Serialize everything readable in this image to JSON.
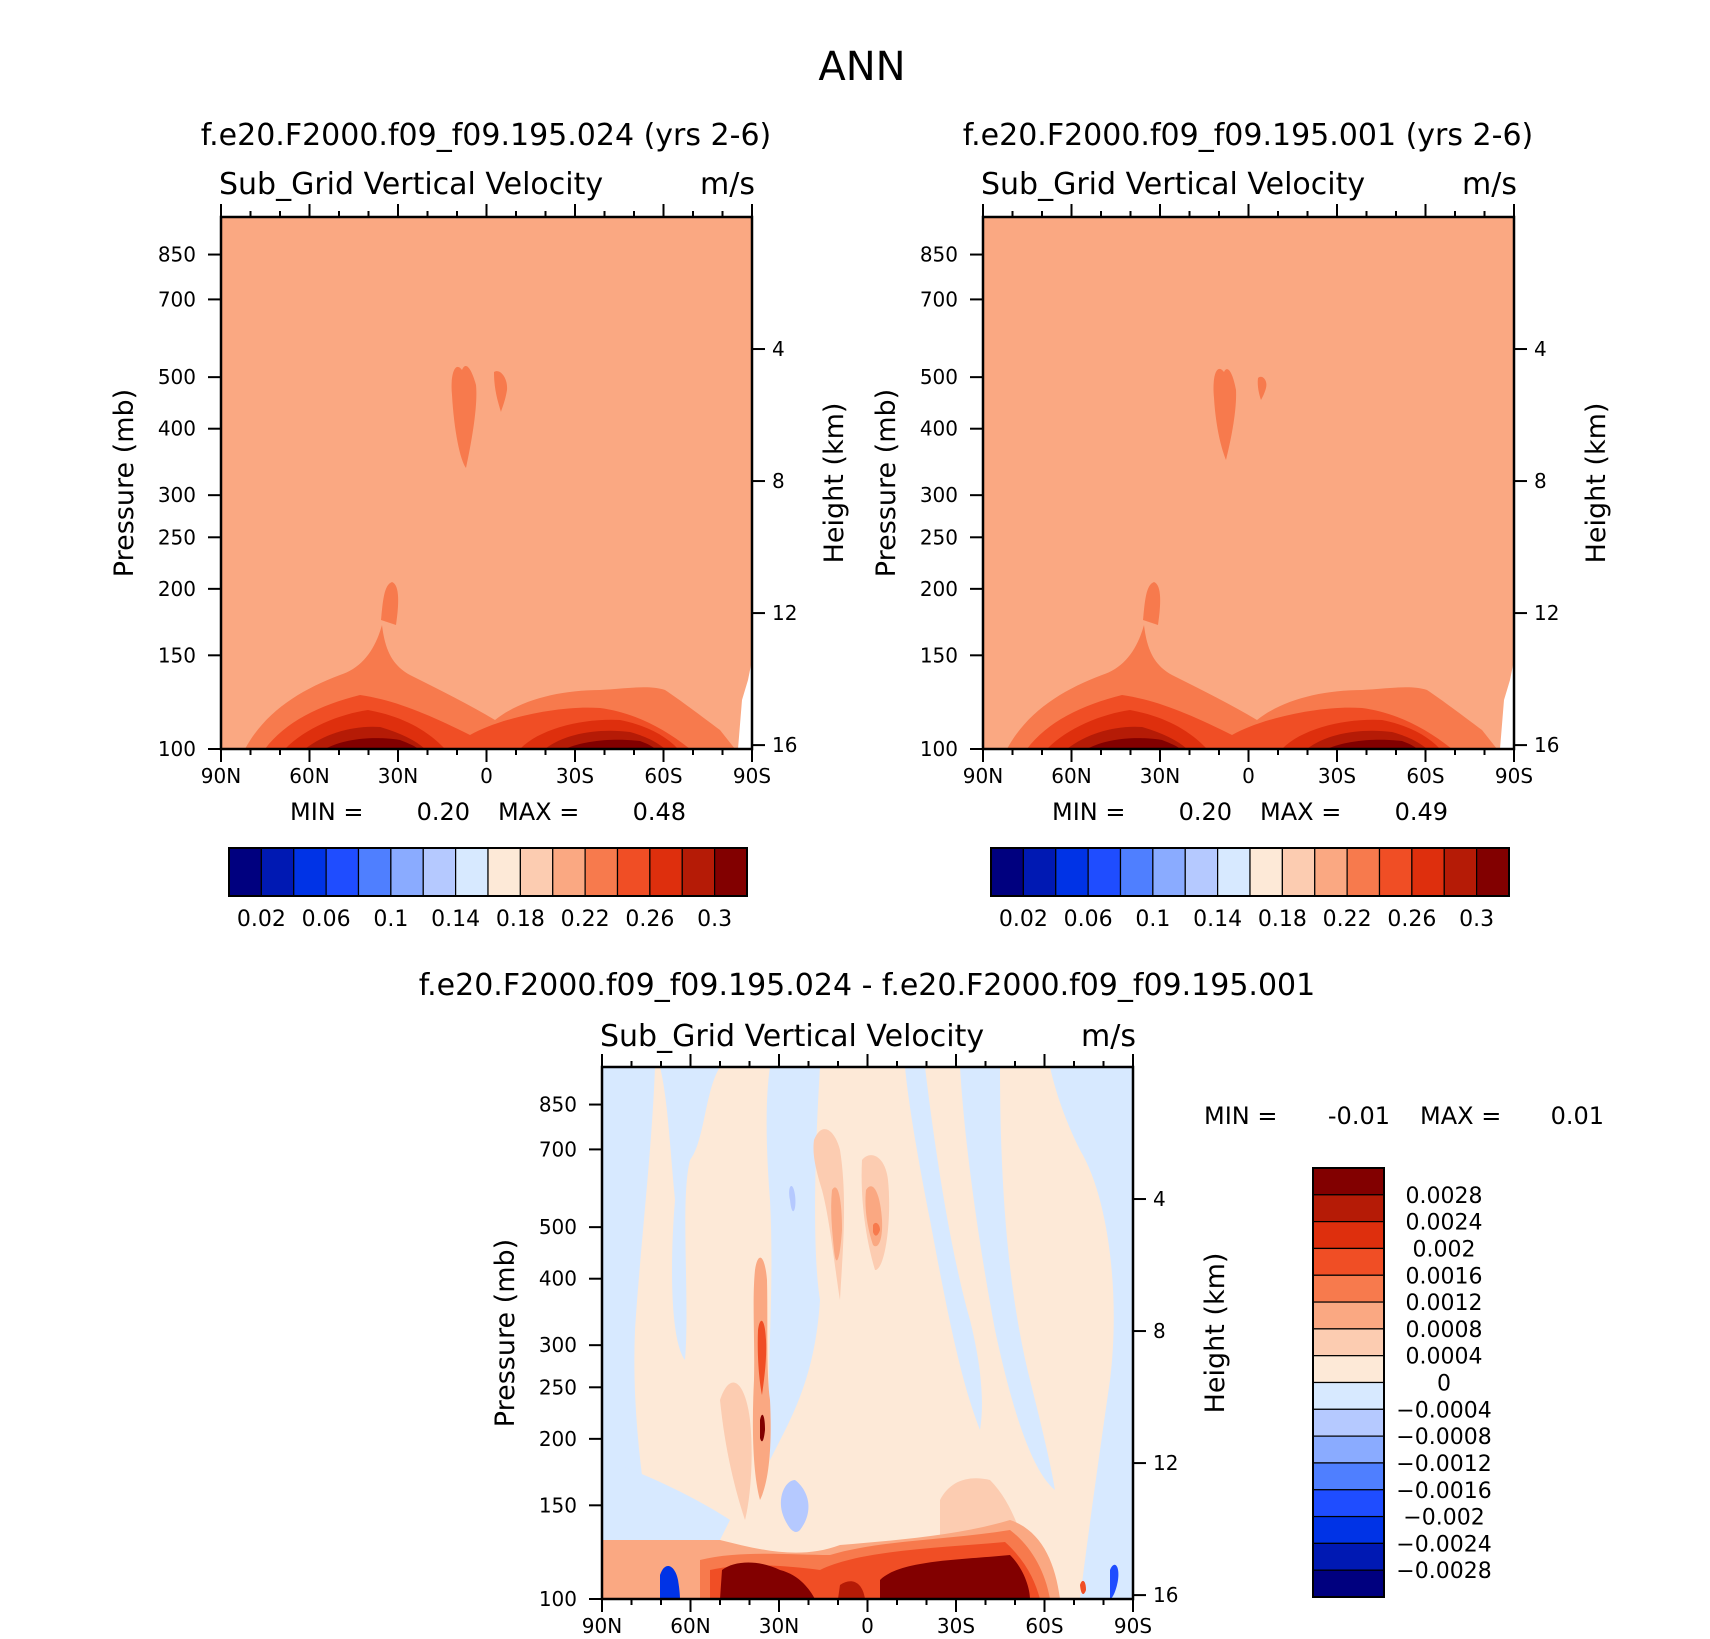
{
  "chart_data": [
    {
      "type": "heatmap",
      "panel": "top-left",
      "case_title": "f.e20.F2000.f09_f09.195.024 (yrs 2-6)",
      "variable": "Sub_Grid Vertical Velocity",
      "units": "m/s",
      "ylabel": "Pressure (mb)",
      "ylabel_right": "Height (km)",
      "x_ticks": [
        "90N",
        "60N",
        "30N",
        "0",
        "30S",
        "60S",
        "90S"
      ],
      "y_ticks": [
        100,
        150,
        200,
        250,
        300,
        400,
        500,
        700,
        850
      ],
      "ylim": [
        1000,
        100
      ],
      "height_ticks": [
        16,
        12,
        8,
        4
      ],
      "min_label": "MIN =",
      "min_value": "0.20",
      "max_label": "MAX =",
      "max_value": "0.48",
      "background_level": "0.18-0.20"
    },
    {
      "type": "heatmap",
      "panel": "top-right",
      "case_title": "f.e20.F2000.f09_f09.195.001 (yrs 2-6)",
      "variable": "Sub_Grid Vertical Velocity",
      "units": "m/s",
      "ylabel": "Pressure (mb)",
      "ylabel_right": "Height (km)",
      "x_ticks": [
        "90N",
        "60N",
        "30N",
        "0",
        "30S",
        "60S",
        "90S"
      ],
      "y_ticks": [
        100,
        150,
        200,
        250,
        300,
        400,
        500,
        700,
        850
      ],
      "ylim": [
        1000,
        100
      ],
      "height_ticks": [
        16,
        12,
        8,
        4
      ],
      "min_label": "MIN =",
      "min_value": "0.20",
      "max_label": "MAX =",
      "max_value": "0.49",
      "background_level": "0.18-0.20"
    },
    {
      "type": "heatmap",
      "panel": "bottom",
      "case_title": "f.e20.F2000.f09_f09.195.024 - f.e20.F2000.f09_f09.195.001",
      "variable": "Sub_Grid Vertical Velocity",
      "units": "m/s",
      "ylabel": "Pressure (mb)",
      "ylabel_right": "Height (km)",
      "x_ticks": [
        "90N",
        "60N",
        "30N",
        "0",
        "30S",
        "60S",
        "90S"
      ],
      "y_ticks": [
        100,
        150,
        200,
        250,
        300,
        400,
        500,
        700,
        850
      ],
      "ylim": [
        1000,
        100
      ],
      "height_ticks": [
        16,
        12,
        8,
        4
      ],
      "min_label": "MIN =",
      "min_value": "-0.01",
      "max_label": "MAX =",
      "max_value": "0.01"
    }
  ],
  "figure": {
    "title": "ANN"
  },
  "colorbar_top": {
    "colors": [
      "#00007f",
      "#0019b3",
      "#0033e6",
      "#1f4dff",
      "#4f7fff",
      "#8aabff",
      "#b5c9ff",
      "#d7e9ff",
      "#fde9d7",
      "#fcccb1",
      "#faa882",
      "#f77a4d",
      "#f04e25",
      "#de2f0d",
      "#b51b06",
      "#820000"
    ],
    "labels": [
      "0.02",
      "0.06",
      "0.1",
      "0.14",
      "0.18",
      "0.22",
      "0.26",
      "0.3"
    ]
  },
  "colorbar_diff": {
    "colors": [
      "#820000",
      "#b51b06",
      "#de2f0d",
      "#f04e25",
      "#f77a4d",
      "#faa882",
      "#fcccb1",
      "#fde9d7",
      "#d7e9ff",
      "#b5c9ff",
      "#8aabff",
      "#4f7fff",
      "#1f4dff",
      "#0033e6",
      "#0019b3",
      "#00007f"
    ],
    "labels": [
      "0.0028",
      "0.0024",
      "0.002",
      "0.0016",
      "0.0012",
      "0.0008",
      "0.0004",
      "0",
      "-0.0004",
      "-0.0008",
      "-0.0012",
      "-0.0016",
      "-0.002",
      "-0.0024",
      "-0.0028"
    ]
  }
}
